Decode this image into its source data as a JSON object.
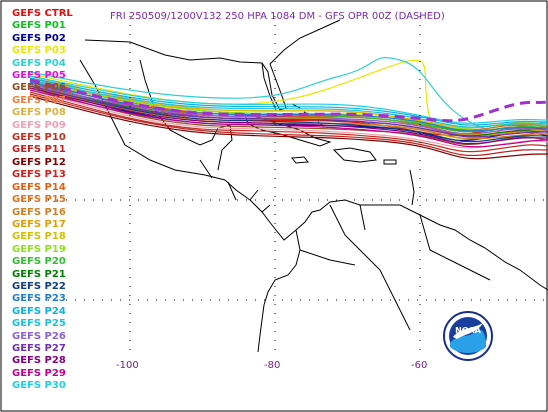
{
  "title": "FRI 250509/1200V132  250 HPA 1084 DM - GFS OPR 00Z (DASHED)",
  "logo_text": "NOAA",
  "members": [
    {
      "label": "GEFS CTRL",
      "color": "#e01010"
    },
    {
      "label": "GEFS P01",
      "color": "#10c020"
    },
    {
      "label": "GEFS P02",
      "color": "#000090"
    },
    {
      "label": "GEFS P03",
      "color": "#e8e800"
    },
    {
      "label": "GEFS P04",
      "color": "#30d0d0"
    },
    {
      "label": "GEFS P05",
      "color": "#e010e0"
    },
    {
      "label": "GEFS P06",
      "color": "#905020"
    },
    {
      "label": "GEFS P07",
      "color": "#f08040"
    },
    {
      "label": "GEFS P08",
      "color": "#e0b040"
    },
    {
      "label": "GEFS P09",
      "color": "#f0a0b0"
    },
    {
      "label": "GEFS P10",
      "color": "#c03020"
    },
    {
      "label": "GEFS P11",
      "color": "#c02020"
    },
    {
      "label": "GEFS P12",
      "color": "#800000"
    },
    {
      "label": "GEFS P13",
      "color": "#d02020"
    },
    {
      "label": "GEFS P14",
      "color": "#e06010"
    },
    {
      "label": "GEFS P15",
      "color": "#e07020"
    },
    {
      "label": "GEFS P16",
      "color": "#d08020"
    },
    {
      "label": "GEFS P17",
      "color": "#e0a000"
    },
    {
      "label": "GEFS P18",
      "color": "#d0c000"
    },
    {
      "label": "GEFS P19",
      "color": "#90e020"
    },
    {
      "label": "GEFS P20",
      "color": "#30c030"
    },
    {
      "label": "GEFS P21",
      "color": "#008000"
    },
    {
      "label": "GEFS P22",
      "color": "#104080"
    },
    {
      "label": "GEFS P23",
      "color": "#2080d0"
    },
    {
      "label": "GEFS P24",
      "color": "#10b0e0"
    },
    {
      "label": "GEFS P25",
      "color": "#20c0e0"
    },
    {
      "label": "GEFS P26",
      "color": "#9060d0"
    },
    {
      "label": "GEFS P27",
      "color": "#7030b0"
    },
    {
      "label": "GEFS P28",
      "color": "#800080"
    },
    {
      "label": "GEFS P29",
      "color": "#c00090"
    },
    {
      "label": "GEFS P30",
      "color": "#20d0e0"
    }
  ],
  "longitude_labels": [
    {
      "label": "-100"
    },
    {
      "label": "-80"
    },
    {
      "label": "-60"
    }
  ],
  "colors": {
    "frame": "#000000",
    "coastline": "#000000",
    "grid": "#000000",
    "operational": "#a030d0"
  }
}
